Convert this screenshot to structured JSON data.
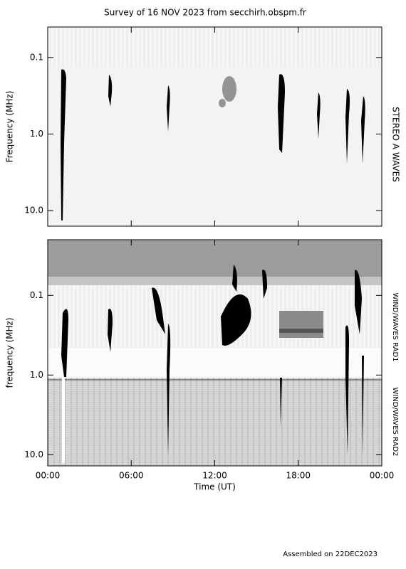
{
  "title": "Survey of 16 NOV 2023 from secchirh.obspm.fr",
  "footer": "Assembled on 22DEC2023",
  "chart_data": [
    {
      "type": "spectrogram",
      "ylabel": "Frequency (MHz)",
      "right_labels": [
        "STEREO A WAVES"
      ],
      "log_y": true,
      "ylim": [
        0.04,
        16
      ],
      "yticks": [
        0.1,
        {
          "value": 1,
          "label": "1.0"
        },
        {
          "value": 10,
          "label": "10.0"
        }
      ],
      "xlim": [
        0,
        24
      ],
      "xticks": [
        0,
        6,
        12,
        18,
        24
      ]
    },
    {
      "type": "spectrogram",
      "ylabel": "frequency (MHz)",
      "xlabel": "Time (UT)",
      "right_labels": [
        "WIND/WAVES RAD1",
        "WIND/WAVES RAD2"
      ],
      "log_y": true,
      "ylim": [
        0.02,
        13.8
      ],
      "yticks": [
        0.1,
        {
          "value": 1,
          "label": "1.0"
        },
        {
          "value": 10,
          "label": "10.0"
        }
      ],
      "xlim": [
        0,
        24
      ],
      "xticks": [
        {
          "value": 0,
          "label": "00:00"
        },
        {
          "value": 6,
          "label": "06:00"
        },
        {
          "value": 12,
          "label": "12:00"
        },
        {
          "value": 18,
          "label": "18:00"
        },
        {
          "value": 24,
          "label": "00:00"
        }
      ]
    }
  ]
}
